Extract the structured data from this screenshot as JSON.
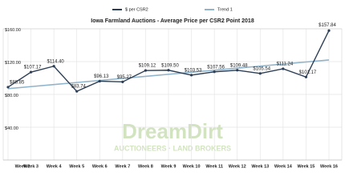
{
  "chart_data": {
    "type": "line",
    "title": "Iowa Farmland Auctions - Average Price per CSR2 Point 2018",
    "categories": [
      "Week 2",
      "Week 3",
      "Week 4",
      "Week 5",
      "Week 6",
      "Week 7",
      "Week 8",
      "Week 9",
      "Week 10",
      "Week 11",
      "Week 12",
      "Week 13",
      "Week 14",
      "Week 15",
      "Week 16"
    ],
    "series": [
      {
        "name": "$ per CSR2",
        "color": "#2c3e55",
        "values": [
          88.85,
          107.17,
          114.4,
          83.74,
          96.13,
          95.27,
          109.12,
          109.5,
          103.53,
          107.56,
          109.48,
          105.54,
          111.24,
          101.17,
          157.84
        ],
        "value_labels": [
          "$88.85",
          "$107.17",
          "$114.40",
          "$83.74",
          "$96.13",
          "$95.27",
          "$109.12",
          "$109.50",
          "$103.53",
          "$107.56",
          "$109.48",
          "$105.54",
          "$111.24",
          "$101.17",
          "$157.84"
        ]
      },
      {
        "name": "Trend 1",
        "color": "#8fb4cc",
        "values": [
          87,
          89.5,
          92,
          94.5,
          97,
          99.5,
          102,
          104.5,
          107,
          109.5,
          112,
          114.5,
          117,
          119.5,
          122
        ]
      }
    ],
    "ylim": [
      0,
      160
    ],
    "yticks": [
      {
        "value": 40,
        "label": "$40.00"
      },
      {
        "value": 80,
        "label": "$80.00"
      },
      {
        "value": 120,
        "label": "$120.00"
      },
      {
        "value": 160,
        "label": "$160.00"
      }
    ],
    "grid": true,
    "legend": "top",
    "watermark": [
      "DreamDirt",
      "AUCTIONEERS · LAND BROKERS"
    ]
  }
}
